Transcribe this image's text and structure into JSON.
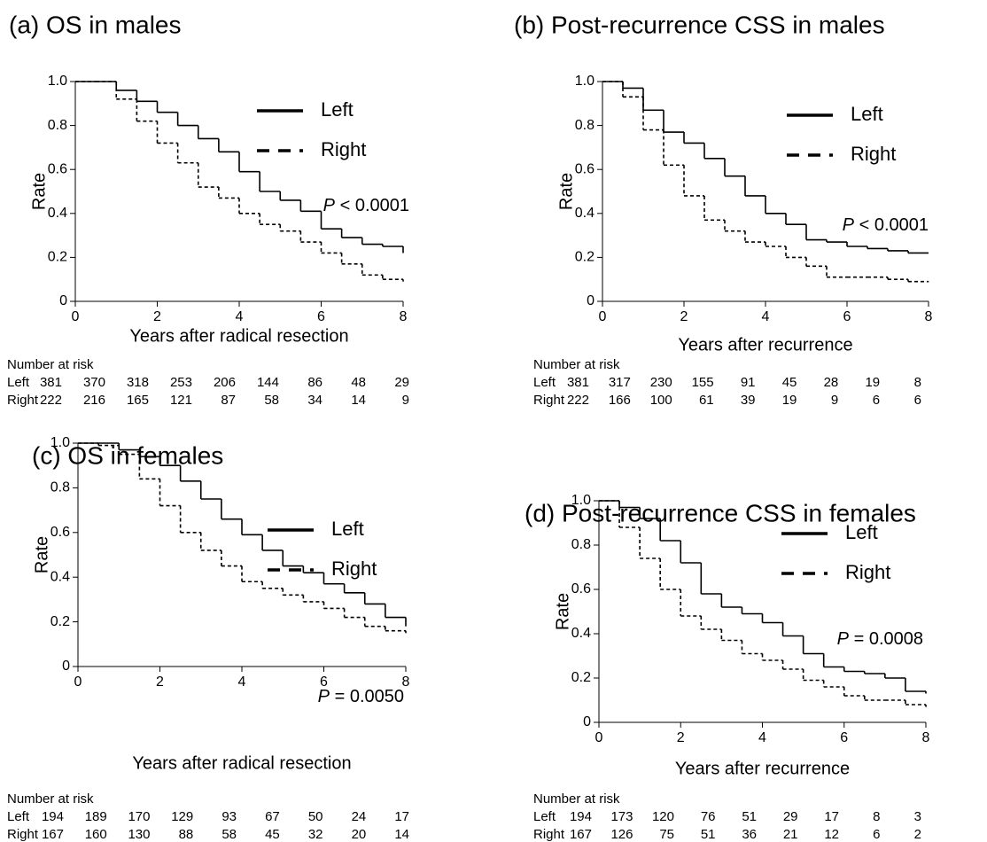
{
  "chart_data": [
    {
      "type": "line",
      "title": "(a) OS in males",
      "xlabel": "Years after radical resection",
      "ylabel": "Rate",
      "x": [
        0,
        0.5,
        1,
        1.5,
        2,
        2.5,
        3,
        3.5,
        4,
        4.5,
        5,
        5.5,
        6,
        6.5,
        7,
        7.5,
        8
      ],
      "series": [
        {
          "name": "Left",
          "color": "#000000",
          "dash": false,
          "values": [
            1.0,
            1.0,
            0.96,
            0.91,
            0.86,
            0.8,
            0.74,
            0.68,
            0.59,
            0.5,
            0.46,
            0.41,
            0.33,
            0.29,
            0.26,
            0.25,
            0.22
          ]
        },
        {
          "name": "Right",
          "color": "#000000",
          "dash": true,
          "values": [
            1.0,
            1.0,
            0.92,
            0.82,
            0.72,
            0.63,
            0.52,
            0.47,
            0.4,
            0.35,
            0.32,
            0.27,
            0.22,
            0.17,
            0.12,
            0.1,
            0.09
          ]
        }
      ],
      "xlim": [
        0,
        8
      ],
      "xticks": [
        0,
        2,
        4,
        6,
        8
      ],
      "ylim": [
        0,
        1
      ],
      "yticks": [
        0,
        0.2,
        0.4,
        0.6,
        0.8,
        {
          "value": 1,
          "label": "1.0"
        }
      ],
      "p_label": "P",
      "p_value": "< 0.0001",
      "risk_table": {
        "title": "Number at risk",
        "rows": [
          [
            381,
            370,
            318,
            253,
            206,
            144,
            86,
            48,
            29
          ],
          [
            222,
            216,
            165,
            121,
            87,
            58,
            34,
            14,
            9
          ]
        ]
      }
    },
    {
      "type": "line",
      "title": "(b) Post-recurrence CSS in males",
      "xlabel": "Years after recurrence",
      "ylabel": "Rate",
      "x": [
        0,
        0.5,
        1,
        1.5,
        2,
        2.5,
        3,
        3.5,
        4,
        4.5,
        5,
        5.5,
        6,
        6.5,
        7,
        7.5,
        8
      ],
      "series": [
        {
          "name": "Left",
          "color": "#000000",
          "dash": false,
          "values": [
            1.0,
            0.97,
            0.87,
            0.77,
            0.72,
            0.65,
            0.57,
            0.48,
            0.4,
            0.35,
            0.28,
            0.27,
            0.25,
            0.24,
            0.23,
            0.22,
            0.22
          ]
        },
        {
          "name": "Right",
          "color": "#000000",
          "dash": true,
          "values": [
            1.0,
            0.93,
            0.78,
            0.62,
            0.48,
            0.37,
            0.32,
            0.27,
            0.25,
            0.2,
            0.16,
            0.11,
            0.11,
            0.11,
            0.1,
            0.09,
            0.09
          ]
        }
      ],
      "xlim": [
        0,
        8
      ],
      "xticks": [
        0,
        2,
        4,
        6,
        8
      ],
      "ylim": [
        0,
        1
      ],
      "yticks": [
        0,
        0.2,
        0.4,
        0.6,
        0.8,
        {
          "value": 1,
          "label": "1.0"
        }
      ],
      "p_label": "P",
      "p_value": "< 0.0001",
      "risk_table": {
        "title": "Number at risk",
        "rows": [
          [
            381,
            317,
            230,
            155,
            91,
            45,
            28,
            19,
            8
          ],
          [
            222,
            166,
            100,
            61,
            39,
            19,
            9,
            6,
            6
          ]
        ]
      }
    },
    {
      "type": "line",
      "title": "(c) OS in females",
      "xlabel": "Years after radical resection",
      "ylabel": "Rate",
      "x": [
        0,
        0.5,
        1,
        1.5,
        2,
        2.5,
        3,
        3.5,
        4,
        4.5,
        5,
        5.5,
        6,
        6.5,
        7,
        7.5,
        8
      ],
      "series": [
        {
          "name": "Left",
          "color": "#000000",
          "dash": false,
          "values": [
            1.0,
            1.0,
            0.97,
            0.94,
            0.9,
            0.83,
            0.75,
            0.66,
            0.59,
            0.52,
            0.45,
            0.42,
            0.37,
            0.33,
            0.28,
            0.22,
            0.18
          ]
        },
        {
          "name": "Right",
          "color": "#000000",
          "dash": true,
          "values": [
            1.0,
            0.99,
            0.95,
            0.84,
            0.72,
            0.6,
            0.52,
            0.45,
            0.38,
            0.35,
            0.32,
            0.29,
            0.26,
            0.22,
            0.18,
            0.16,
            0.15
          ]
        }
      ],
      "xlim": [
        0,
        8
      ],
      "xticks": [
        0,
        2,
        4,
        6,
        8
      ],
      "ylim": [
        0,
        1
      ],
      "yticks": [
        0,
        0.2,
        0.4,
        0.6,
        0.8,
        {
          "value": 1,
          "label": "1.0"
        }
      ],
      "p_label": "P",
      "p_value": "= 0.0050",
      "risk_table": {
        "title": "Number at risk",
        "rows": [
          [
            194,
            189,
            170,
            129,
            93,
            67,
            50,
            24,
            17
          ],
          [
            167,
            160,
            130,
            88,
            58,
            45,
            32,
            20,
            14
          ]
        ]
      }
    },
    {
      "type": "line",
      "title": "(d) Post-recurrence CSS in females",
      "xlabel": "Years after recurrence",
      "ylabel": "Rate",
      "x": [
        0,
        0.5,
        1,
        1.5,
        2,
        2.5,
        3,
        3.5,
        4,
        4.5,
        5,
        5.5,
        6,
        6.5,
        7,
        7.5,
        8
      ],
      "series": [
        {
          "name": "Left",
          "color": "#000000",
          "dash": false,
          "values": [
            1.0,
            0.97,
            0.92,
            0.82,
            0.72,
            0.58,
            0.52,
            0.49,
            0.45,
            0.39,
            0.31,
            0.25,
            0.23,
            0.22,
            0.2,
            0.14,
            0.13
          ]
        },
        {
          "name": "Right",
          "color": "#000000",
          "dash": true,
          "values": [
            1.0,
            0.88,
            0.74,
            0.6,
            0.48,
            0.42,
            0.37,
            0.31,
            0.28,
            0.24,
            0.19,
            0.16,
            0.12,
            0.1,
            0.1,
            0.08,
            0.07
          ]
        }
      ],
      "xlim": [
        0,
        8
      ],
      "xticks": [
        0,
        2,
        4,
        6,
        8
      ],
      "ylim": [
        0,
        1
      ],
      "yticks": [
        0,
        0.2,
        0.4,
        0.6,
        0.8,
        {
          "value": 1,
          "label": "1.0"
        }
      ],
      "p_label": "P",
      "p_value": "= 0.0008",
      "risk_table": {
        "title": "Number at risk",
        "rows": [
          [
            194,
            173,
            120,
            76,
            51,
            29,
            17,
            8,
            3
          ],
          [
            167,
            126,
            75,
            51,
            36,
            21,
            12,
            6,
            2
          ]
        ]
      }
    }
  ]
}
